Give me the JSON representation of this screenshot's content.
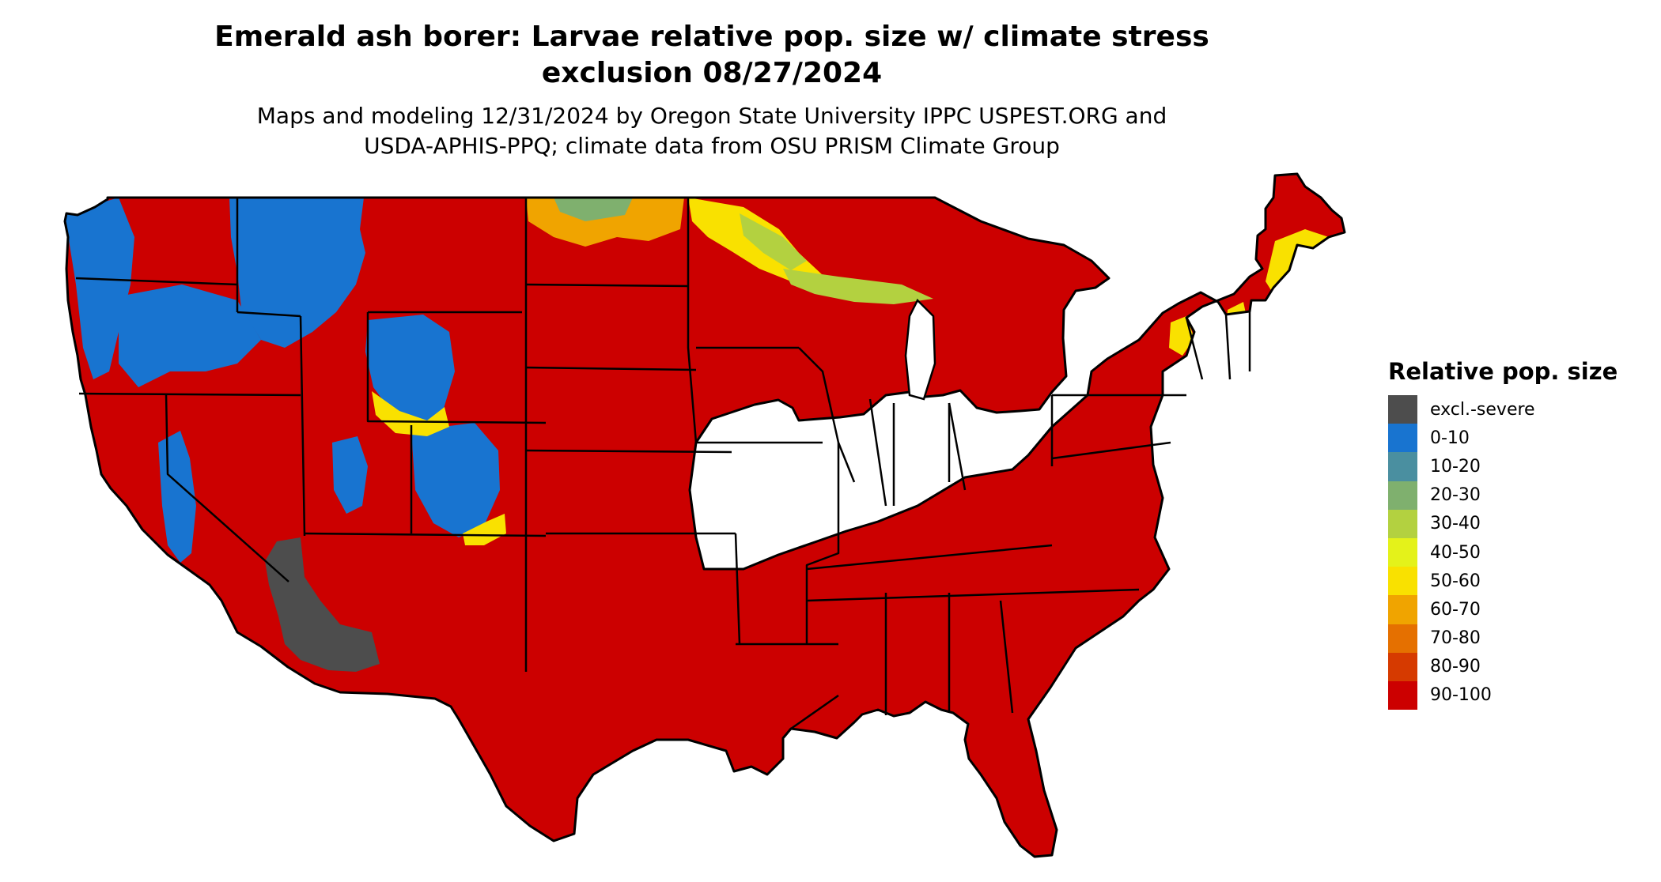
{
  "title_lines": [
    "Emerald ash borer: Larvae relative pop. size w/ climate stress",
    "exclusion 08/27/2024"
  ],
  "subtitle_lines": [
    "Maps and modeling 12/31/2024 by Oregon State University IPPC USPEST.ORG and",
    "USDA-APHIS-PPQ; climate data from OSU PRISM Climate Group"
  ],
  "legend": {
    "title": "Relative pop. size",
    "items": [
      {
        "label": "excl.-severe",
        "color": "#4d4d4d"
      },
      {
        "label": "0-10",
        "color": "#1874d0"
      },
      {
        "label": "10-20",
        "color": "#4a8fa0"
      },
      {
        "label": "20-30",
        "color": "#7fb06e"
      },
      {
        "label": "30-40",
        "color": "#b3d140"
      },
      {
        "label": "40-50",
        "color": "#e4f21a"
      },
      {
        "label": "50-60",
        "color": "#f9e100"
      },
      {
        "label": "60-70",
        "color": "#f0a400"
      },
      {
        "label": "70-80",
        "color": "#e57000"
      },
      {
        "label": "80-90",
        "color": "#d63a00"
      },
      {
        "label": "90-100",
        "color": "#cc0000"
      }
    ]
  }
}
